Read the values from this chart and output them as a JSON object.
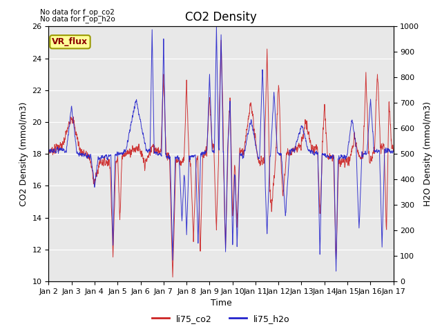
{
  "title": "CO2 Density",
  "xlabel": "Time",
  "ylabel_left": "CO2 Density (mmol/m3)",
  "ylabel_right": "H2O Density (mmol/m3)",
  "ylim_left": [
    10,
    26
  ],
  "ylim_right": [
    0,
    1000
  ],
  "yticks_left": [
    10,
    12,
    14,
    16,
    18,
    20,
    22,
    24,
    26
  ],
  "yticks_right": [
    0,
    100,
    200,
    300,
    400,
    500,
    600,
    700,
    800,
    900,
    1000
  ],
  "xtick_labels": [
    "Jan 2",
    "Jan 3",
    "Jan 4",
    "Jan 5",
    "Jan 6",
    "Jan 7",
    "Jan 8",
    "Jan 9",
    "Jan 10",
    "Jan 11",
    "Jan 12",
    "Jan 13",
    "Jan 14",
    "Jan 15",
    "Jan 16",
    "Jan 17"
  ],
  "color_co2": "#cc2222",
  "color_h2o": "#2222cc",
  "color_bg": "#e8e8e8",
  "note_line1": "No data for f_op_co2",
  "note_line2": "No data for f_op_h2o",
  "legend_label_co2": "li75_co2",
  "legend_label_h2o": "li75_h2o",
  "vr_flux_label": "VR_flux",
  "vr_flux_bg": "#ffff99",
  "vr_flux_border": "#999900"
}
